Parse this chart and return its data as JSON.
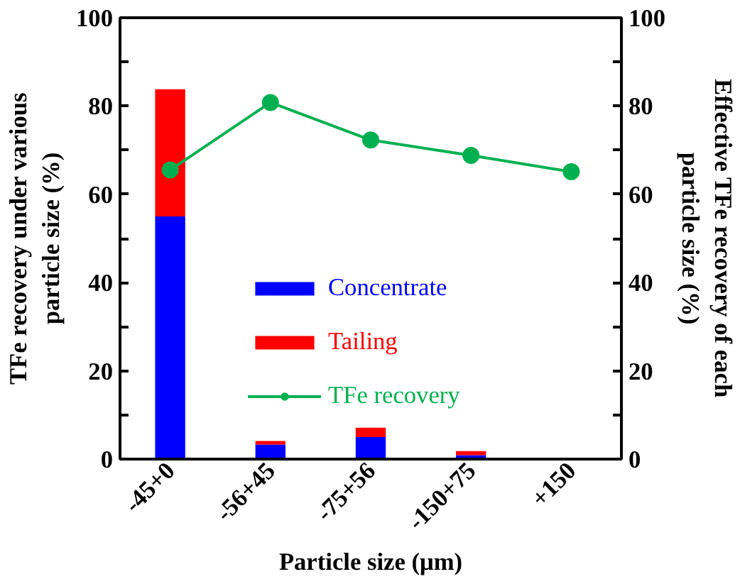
{
  "chart_data": {
    "type": "bar",
    "stacked": true,
    "xlabel": "Particle size (μm)",
    "ylabel": "TFe recovery under various particle size (%)",
    "y2label": "Effective TFe recovery of each particle size (%)",
    "categories": [
      "-45+0",
      "-56+45",
      "-75+56",
      "-150+75",
      "+150"
    ],
    "series": [
      {
        "name": "Concentrate",
        "color": "#0000ff",
        "values": [
          55,
          3.3,
          5.0,
          0.9,
          0
        ]
      },
      {
        "name": "Tailing",
        "color": "#ff0000",
        "values": [
          28.8,
          0.8,
          2.1,
          0.9,
          0
        ]
      },
      {
        "name": "TFe recovery",
        "color": "#00b050",
        "type": "line",
        "axis": "y2",
        "marker": "circle",
        "values": [
          65.5,
          80.8,
          72.3,
          68.8,
          65.1
        ]
      }
    ],
    "ylim": [
      0,
      100
    ],
    "y2lim": [
      0,
      100
    ],
    "yticks": [
      0,
      {
        "value": 10,
        "label": null
      },
      20,
      {
        "value": 30,
        "label": null
      },
      40,
      {
        "value": 50,
        "label": null
      },
      60,
      {
        "value": 70,
        "label": null
      },
      80,
      {
        "value": 90,
        "label": null
      },
      100
    ],
    "y2ticks": [
      0,
      {
        "value": 10,
        "label": null
      },
      20,
      {
        "value": 30,
        "label": null
      },
      40,
      {
        "value": 50,
        "label": null
      },
      60,
      {
        "value": 70,
        "label": null
      },
      80,
      {
        "value": 90,
        "label": null
      },
      100
    ],
    "legend": "bottom right"
  }
}
